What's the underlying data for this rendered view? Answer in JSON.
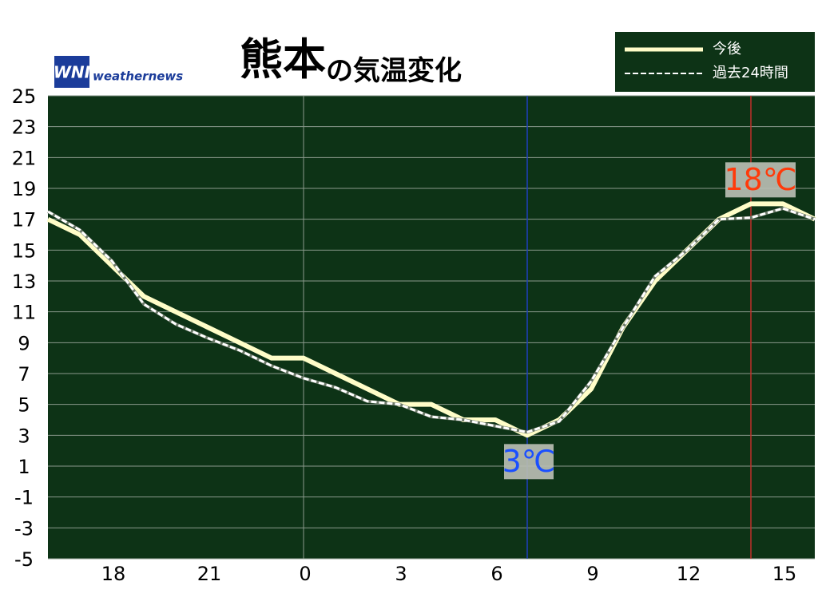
{
  "chart_data": {
    "type": "line",
    "title_parts": [
      "熊本",
      "の気温変化"
    ],
    "logo": "WNI",
    "brand": "weathernews",
    "x": [
      -8,
      -7,
      -6,
      -5,
      -4,
      -3,
      -2,
      -1,
      0,
      1,
      2,
      3,
      4,
      5,
      6,
      7,
      8,
      9,
      10,
      11,
      12,
      13,
      14,
      15,
      16
    ],
    "series": [
      {
        "name": "今後",
        "color": "#fffdc8",
        "values": [
          17,
          16,
          14,
          12,
          11,
          10,
          9,
          8,
          8,
          7,
          6,
          5,
          5,
          4,
          4,
          3,
          4,
          6,
          10,
          13,
          15,
          17,
          18,
          18,
          17
        ]
      },
      {
        "name": "過去24時間",
        "color": "#ffffff",
        "values": [
          17.5,
          16.3,
          14.3,
          11.5,
          10.2,
          9.3,
          8.5,
          7.5,
          6.7,
          6.1,
          5.2,
          5,
          4.2,
          4,
          3.6,
          3.2,
          3.9,
          6.5,
          10,
          13.3,
          15,
          17,
          17.1,
          17.7,
          17
        ]
      }
    ],
    "xlim": [
      -8,
      16
    ],
    "xticks": [
      {
        "value": -6,
        "label": "18"
      },
      {
        "value": -3,
        "label": "21"
      },
      0,
      3,
      6,
      9,
      12,
      15
    ],
    "x_grid_lines": [
      0
    ],
    "ylim": [
      -5,
      25
    ],
    "yticks": [
      25,
      23,
      21,
      19,
      17,
      15,
      13,
      11,
      9,
      7,
      5,
      3,
      1,
      -1,
      -3,
      -5
    ],
    "grid": true,
    "legend": "top-right",
    "annotations": [
      {
        "label": "3℃",
        "x": 7,
        "value": 3,
        "color": "#1a4fff",
        "line_color": "#1f3fbf"
      },
      {
        "label": "18℃",
        "x": 14,
        "value": 18,
        "color": "#ff3a0a",
        "line_color": "#c0302a"
      }
    ]
  }
}
